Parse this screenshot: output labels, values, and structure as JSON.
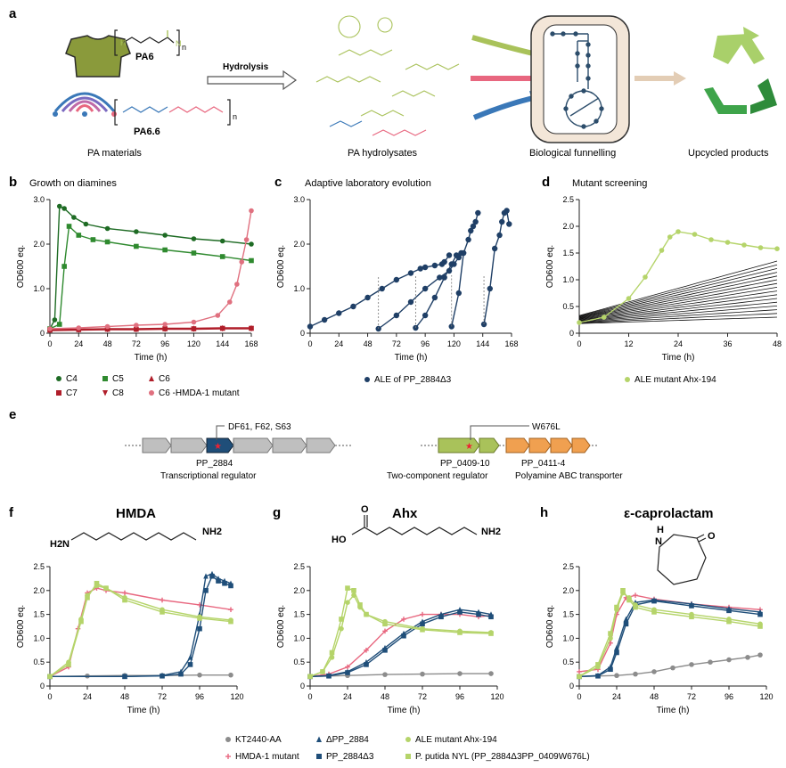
{
  "figure": {
    "panel_letters": [
      "a",
      "b",
      "c",
      "d",
      "e",
      "f",
      "g",
      "h"
    ],
    "a": {
      "pa6": "PA6",
      "pa66": "PA6.6",
      "hydrolysis": "Hydrolysis",
      "bracket_n": "n",
      "pa_materials": "PA materials",
      "pa_hydrolysates": "PA hydrolysates",
      "biological_funnelling": "Biological funnelling",
      "upcycled_products": "Upcycled products",
      "colors": {
        "green": "#a9c25a",
        "pink": "#e8677f",
        "blue": "#3a78b8",
        "dark": "#2c4d6b"
      }
    },
    "e": {
      "mutation_left": "DF61, F62, S63",
      "gene_left": "PP_2884",
      "desc_left": "Transcriptional regulator",
      "mutation_right": "W676L",
      "gene_right_1": "PP_0409-10",
      "gene_right_2": "PP_0411-4",
      "desc_right_1": "Two-component regulator",
      "desc_right_2": "Polyamine ABC transporter"
    },
    "legends": {
      "b": [
        {
          "label": "C4",
          "color": "#1e6b24",
          "marker": "circle"
        },
        {
          "label": "C5",
          "color": "#2f8a2f",
          "marker": "square"
        },
        {
          "label": "C6",
          "color": "#b01e2a",
          "marker": "triangle"
        },
        {
          "label": "C7",
          "color": "#b01e2a",
          "marker": "square"
        },
        {
          "label": "C8",
          "color": "#b01e2a",
          "marker": "triangle-down"
        },
        {
          "label": "C6 -HMDA-1 mutant",
          "color": "#e0707f",
          "marker": "circle"
        }
      ],
      "c": [
        {
          "label": "ALE of PP_2884Δ3",
          "color": "#1f3f66",
          "marker": "circle"
        }
      ],
      "d": [
        {
          "label": "ALE mutant Ahx-194",
          "color": "#b5d46a",
          "marker": "circle"
        }
      ],
      "fgh": [
        {
          "label": "KT2440-AA",
          "color": "#8c8c8c",
          "marker": "circle"
        },
        {
          "label": "HMDA-1 mutant",
          "color": "#e8677f",
          "marker": "plus"
        },
        {
          "label": "ΔPP_2884",
          "color": "#1f4e79",
          "marker": "triangle"
        },
        {
          "label": "PP_2884Δ3",
          "color": "#1f4e79",
          "marker": "square"
        },
        {
          "label": "ALE mutant Ahx-194",
          "color": "#b5d46a",
          "marker": "circle"
        },
        {
          "label": "P. putida NYL (PP_2884Δ3PP_0409W676L)",
          "color": "#b5d46a",
          "marker": "square"
        }
      ]
    },
    "structures": {
      "f_h2n": "H2N",
      "f_nh2": "NH2",
      "g_o": "O",
      "g_ho": "HO",
      "g_nh2": "NH2",
      "h_h": "H",
      "h_n": "N",
      "h_o": "O"
    }
  },
  "chart_data": [
    {
      "id": "b",
      "type": "line",
      "title": "Growth on diamines",
      "xlabel": "Time (h)",
      "ylabel": "OD600 eq.",
      "xlim": [
        0,
        168
      ],
      "ylim": [
        0,
        3.0
      ],
      "xticks": [
        0,
        24,
        48,
        72,
        96,
        120,
        144,
        168
      ],
      "yticks": [
        0,
        1.0,
        2.0,
        3.0
      ],
      "series": [
        {
          "name": "C4",
          "x": [
            0,
            4,
            8,
            12,
            20,
            30,
            48,
            72,
            96,
            120,
            144,
            168
          ],
          "y": [
            0.1,
            0.3,
            2.85,
            2.8,
            2.6,
            2.45,
            2.35,
            2.28,
            2.2,
            2.12,
            2.07,
            2.0
          ]
        },
        {
          "name": "C5",
          "x": [
            0,
            8,
            12,
            16,
            24,
            36,
            48,
            72,
            96,
            120,
            144,
            168
          ],
          "y": [
            0.1,
            0.2,
            1.5,
            2.4,
            2.2,
            2.1,
            2.05,
            1.95,
            1.87,
            1.8,
            1.72,
            1.63
          ]
        },
        {
          "name": "C6",
          "x": [
            0,
            24,
            48,
            72,
            96,
            120,
            144,
            168
          ],
          "y": [
            0.08,
            0.09,
            0.1,
            0.1,
            0.11,
            0.11,
            0.12,
            0.12
          ]
        },
        {
          "name": "C7",
          "x": [
            0,
            24,
            48,
            72,
            96,
            120,
            144,
            168
          ],
          "y": [
            0.07,
            0.08,
            0.09,
            0.09,
            0.1,
            0.1,
            0.11,
            0.11
          ]
        },
        {
          "name": "C8",
          "x": [
            0,
            24,
            48,
            72,
            96,
            120,
            144,
            168
          ],
          "y": [
            0.06,
            0.07,
            0.08,
            0.08,
            0.09,
            0.09,
            0.1,
            0.1
          ]
        },
        {
          "name": "C6 -HMDA-1 mutant",
          "x": [
            0,
            24,
            48,
            72,
            96,
            120,
            140,
            150,
            156,
            160,
            164,
            168
          ],
          "y": [
            0.1,
            0.12,
            0.15,
            0.18,
            0.2,
            0.25,
            0.4,
            0.7,
            1.1,
            1.6,
            2.1,
            2.75
          ]
        }
      ]
    },
    {
      "id": "c",
      "type": "line",
      "title": "Adaptive laboratory evolution",
      "xlabel": "Time (h)",
      "ylabel": "OD600 eq.",
      "xlim": [
        0,
        168
      ],
      "ylim": [
        0,
        3.0
      ],
      "xticks": [
        0,
        24,
        48,
        72,
        96,
        120,
        144,
        168
      ],
      "yticks": [
        0,
        1.0,
        2.0,
        3.0
      ],
      "series": [
        {
          "name": "ALE of PP_2884Δ3",
          "segments": [
            {
              "x": [
                0,
                12,
                24,
                36,
                48,
                60,
                72,
                84,
                92,
                96,
                104,
                110,
                112,
                116
              ],
              "y": [
                0.15,
                0.3,
                0.45,
                0.6,
                0.8,
                1.0,
                1.2,
                1.35,
                1.45,
                1.48,
                1.52,
                1.55,
                1.6,
                1.75
              ]
            },
            {
              "x": [
                57,
                72,
                84,
                96,
                108,
                116,
                120,
                124
              ],
              "y": [
                0.1,
                0.4,
                0.7,
                1.0,
                1.25,
                1.4,
                1.55,
                1.7
              ]
            },
            {
              "x": [
                88,
                96,
                104,
                112,
                118,
                122,
                126
              ],
              "y": [
                0.12,
                0.4,
                0.8,
                1.25,
                1.55,
                1.75,
                1.8
              ]
            },
            {
              "x": [
                118,
                124,
                128,
                132,
                134,
                136,
                138,
                140
              ],
              "y": [
                0.15,
                0.9,
                1.8,
                2.1,
                2.3,
                2.4,
                2.5,
                2.7
              ]
            },
            {
              "x": [
                145,
                150,
                154,
                158,
                160,
                162,
                164,
                166
              ],
              "y": [
                0.2,
                1.0,
                1.9,
                2.2,
                2.5,
                2.7,
                2.75,
                2.45
              ]
            }
          ]
        }
      ]
    },
    {
      "id": "d",
      "type": "line",
      "title": "Mutant screening",
      "xlabel": "Time (h)",
      "ylabel": "OD600 eq.",
      "xlim": [
        0,
        48
      ],
      "ylim": [
        0,
        2.5
      ],
      "xticks": [
        0,
        12,
        24,
        36,
        48
      ],
      "yticks": [
        0,
        0.5,
        1.0,
        1.5,
        2.0,
        2.5
      ],
      "series": [
        {
          "name": "ALE mutant Ahx-194",
          "x": [
            0,
            6,
            12,
            16,
            20,
            22,
            24,
            28,
            32,
            36,
            40,
            44,
            48
          ],
          "y": [
            0.2,
            0.3,
            0.65,
            1.05,
            1.55,
            1.8,
            1.9,
            1.85,
            1.75,
            1.7,
            1.65,
            1.6,
            1.58
          ]
        }
      ]
    },
    {
      "id": "f",
      "type": "line",
      "title": "HMDA",
      "xlabel": "Time (h)",
      "ylabel": "OD600 eq.",
      "xlim": [
        0,
        120
      ],
      "ylim": [
        0,
        2.5
      ],
      "xticks": [
        0,
        24,
        48,
        72,
        96,
        120
      ],
      "yticks": [
        0,
        0.5,
        1.0,
        1.5,
        2.0,
        2.5
      ],
      "series": [
        {
          "name": "KT2440-AA",
          "x": [
            0,
            24,
            48,
            72,
            96,
            116
          ],
          "y": [
            0.2,
            0.21,
            0.22,
            0.22,
            0.23,
            0.23
          ]
        },
        {
          "name": "HMDA-1 mutant",
          "x": [
            0,
            12,
            18,
            24,
            30,
            36,
            48,
            72,
            96,
            116
          ],
          "y": [
            0.2,
            0.4,
            1.2,
            1.95,
            2.05,
            2.0,
            1.95,
            1.8,
            1.7,
            1.6
          ]
        },
        {
          "name": "ΔPP_2884",
          "x": [
            0,
            48,
            72,
            84,
            90,
            96,
            100,
            104,
            108,
            112,
            116
          ],
          "y": [
            0.2,
            0.2,
            0.22,
            0.3,
            0.6,
            1.5,
            2.3,
            2.35,
            2.25,
            2.2,
            2.15
          ]
        },
        {
          "name": "PP_2884Δ3",
          "x": [
            0,
            48,
            72,
            84,
            90,
            96,
            100,
            104,
            108,
            112,
            116
          ],
          "y": [
            0.2,
            0.2,
            0.21,
            0.25,
            0.45,
            1.2,
            2.0,
            2.3,
            2.2,
            2.15,
            2.1
          ]
        },
        {
          "name": "ALE mutant Ahx-194",
          "x": [
            0,
            12,
            20,
            24,
            30,
            36,
            48,
            72,
            96,
            116
          ],
          "y": [
            0.2,
            0.5,
            1.4,
            1.9,
            2.1,
            2.05,
            1.85,
            1.6,
            1.45,
            1.38
          ]
        },
        {
          "name": "P. putida NYL (PP_2884Δ3PP_0409W676L)",
          "x": [
            0,
            12,
            20,
            24,
            30,
            36,
            48,
            72,
            96,
            116
          ],
          "y": [
            0.2,
            0.45,
            1.35,
            1.85,
            2.15,
            2.05,
            1.8,
            1.55,
            1.42,
            1.35
          ]
        }
      ]
    },
    {
      "id": "g",
      "type": "line",
      "title": "Ahx",
      "xlabel": "Time (h)",
      "ylabel": "OD600 eq.",
      "xlim": [
        0,
        120
      ],
      "ylim": [
        0,
        2.5
      ],
      "xticks": [
        0,
        24,
        48,
        72,
        96,
        120
      ],
      "yticks": [
        0,
        0.5,
        1.0,
        1.5,
        2.0,
        2.5
      ],
      "series": [
        {
          "name": "KT2440-AA",
          "x": [
            0,
            24,
            48,
            72,
            96,
            116
          ],
          "y": [
            0.2,
            0.22,
            0.24,
            0.25,
            0.26,
            0.26
          ]
        },
        {
          "name": "HMDA-1 mutant",
          "x": [
            0,
            12,
            24,
            36,
            48,
            60,
            72,
            84,
            96,
            108,
            116
          ],
          "y": [
            0.2,
            0.25,
            0.4,
            0.75,
            1.15,
            1.4,
            1.5,
            1.5,
            1.5,
            1.45,
            1.48
          ]
        },
        {
          "name": "ΔPP_2884",
          "x": [
            0,
            12,
            24,
            36,
            48,
            60,
            72,
            84,
            96,
            108,
            116
          ],
          "y": [
            0.2,
            0.22,
            0.3,
            0.5,
            0.8,
            1.1,
            1.35,
            1.5,
            1.6,
            1.55,
            1.5
          ]
        },
        {
          "name": "PP_2884Δ3",
          "x": [
            0,
            12,
            24,
            36,
            48,
            60,
            72,
            84,
            96,
            108,
            116
          ],
          "y": [
            0.2,
            0.21,
            0.28,
            0.45,
            0.75,
            1.05,
            1.3,
            1.45,
            1.55,
            1.5,
            1.45
          ]
        },
        {
          "name": "ALE mutant Ahx-194",
          "x": [
            0,
            8,
            14,
            20,
            24,
            28,
            32,
            36,
            48,
            72,
            96,
            116
          ],
          "y": [
            0.2,
            0.3,
            0.6,
            1.2,
            1.75,
            1.9,
            1.65,
            1.5,
            1.35,
            1.2,
            1.15,
            1.12
          ]
        },
        {
          "name": "P. putida NYL (PP_2884Δ3PP_0409W676L)",
          "x": [
            0,
            8,
            14,
            20,
            24,
            28,
            32,
            36,
            48,
            72,
            96,
            116
          ],
          "y": [
            0.2,
            0.3,
            0.7,
            1.4,
            2.05,
            2.0,
            1.7,
            1.5,
            1.3,
            1.18,
            1.12,
            1.1
          ]
        }
      ]
    },
    {
      "id": "h",
      "type": "line",
      "title": "ε-caprolactam",
      "xlabel": "Time (h)",
      "ylabel": "OD600 eq.",
      "xlim": [
        0,
        120
      ],
      "ylim": [
        0,
        2.5
      ],
      "xticks": [
        0,
        24,
        48,
        72,
        96,
        120
      ],
      "yticks": [
        0,
        0.5,
        1.0,
        1.5,
        2.0,
        2.5
      ],
      "series": [
        {
          "name": "KT2440-AA",
          "x": [
            0,
            24,
            36,
            48,
            60,
            72,
            84,
            96,
            108,
            116
          ],
          "y": [
            0.2,
            0.22,
            0.25,
            0.3,
            0.38,
            0.45,
            0.5,
            0.55,
            0.6,
            0.65
          ]
        },
        {
          "name": "HMDA-1 mutant",
          "x": [
            0,
            12,
            20,
            24,
            30,
            36,
            48,
            72,
            96,
            116
          ],
          "y": [
            0.3,
            0.35,
            0.9,
            1.5,
            1.85,
            1.9,
            1.82,
            1.72,
            1.65,
            1.6
          ]
        },
        {
          "name": "ΔPP_2884",
          "x": [
            0,
            12,
            20,
            24,
            30,
            36,
            48,
            72,
            96,
            116
          ],
          "y": [
            0.2,
            0.22,
            0.4,
            0.8,
            1.4,
            1.75,
            1.8,
            1.72,
            1.62,
            1.55
          ]
        },
        {
          "name": "PP_2884Δ3",
          "x": [
            0,
            12,
            20,
            24,
            30,
            36,
            48,
            72,
            96,
            116
          ],
          "y": [
            0.2,
            0.21,
            0.35,
            0.7,
            1.3,
            1.7,
            1.78,
            1.68,
            1.58,
            1.5
          ]
        },
        {
          "name": "ALE mutant Ahx-194",
          "x": [
            0,
            12,
            20,
            24,
            28,
            32,
            36,
            48,
            72,
            96,
            116
          ],
          "y": [
            0.2,
            0.4,
            1.0,
            1.6,
            1.95,
            1.85,
            1.7,
            1.6,
            1.5,
            1.4,
            1.3
          ]
        },
        {
          "name": "P. putida NYL (PP_2884Δ3PP_0409W676L)",
          "x": [
            0,
            12,
            20,
            24,
            28,
            32,
            36,
            48,
            72,
            96,
            116
          ],
          "y": [
            0.2,
            0.45,
            1.1,
            1.65,
            2.0,
            1.8,
            1.65,
            1.55,
            1.45,
            1.35,
            1.25
          ]
        }
      ]
    }
  ]
}
